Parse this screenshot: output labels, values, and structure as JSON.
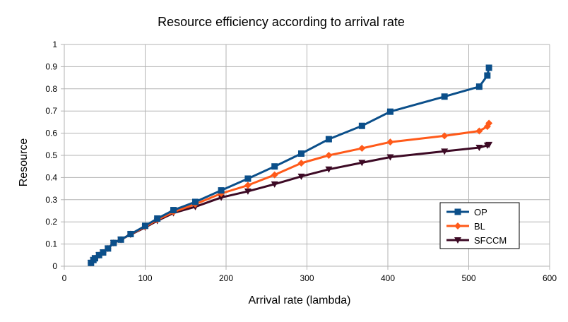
{
  "chart_data": {
    "type": "line",
    "title": "Resource efficiency according to arrival rate",
    "xlabel": "Arrival rate (lambda)",
    "ylabel": "Resource",
    "xlim": [
      0,
      600
    ],
    "ylim": [
      0,
      1
    ],
    "x_ticks": [
      "0",
      "100",
      "200",
      "300",
      "400",
      "500",
      "600"
    ],
    "y_ticks": [
      "0",
      "0.1",
      "0.2",
      "0.3",
      "0.4",
      "0.5",
      "0.6",
      "0.7",
      "0.8",
      "0.9",
      "1"
    ],
    "grid": true,
    "legend_position": "bottom-right",
    "series": [
      {
        "name": "OP",
        "color": "#0b4f8a",
        "marker": "square",
        "x": [
          33,
          36,
          38,
          43,
          48,
          54,
          61,
          70,
          82,
          100,
          115,
          135,
          162,
          194,
          227,
          260,
          293,
          327,
          368,
          403,
          470,
          513,
          523,
          525
        ],
        "y": [
          0.015,
          0.028,
          0.036,
          0.05,
          0.062,
          0.08,
          0.105,
          0.12,
          0.145,
          0.182,
          0.215,
          0.253,
          0.29,
          0.342,
          0.395,
          0.45,
          0.508,
          0.573,
          0.633,
          0.697,
          0.765,
          0.81,
          0.86,
          0.895
        ]
      },
      {
        "name": "BL",
        "color": "#ff5a1a",
        "marker": "diamond",
        "x": [
          33,
          36,
          38,
          43,
          48,
          54,
          61,
          70,
          82,
          100,
          115,
          135,
          162,
          194,
          227,
          260,
          293,
          327,
          368,
          403,
          470,
          513,
          523,
          525
        ],
        "y": [
          0.015,
          0.028,
          0.036,
          0.05,
          0.062,
          0.08,
          0.105,
          0.12,
          0.145,
          0.178,
          0.21,
          0.245,
          0.28,
          0.328,
          0.365,
          0.412,
          0.465,
          0.5,
          0.532,
          0.56,
          0.588,
          0.61,
          0.63,
          0.645
        ]
      },
      {
        "name": "SFCCM",
        "color": "#3d0a25",
        "marker": "triangle-down",
        "x": [
          33,
          36,
          38,
          43,
          48,
          54,
          61,
          70,
          82,
          100,
          115,
          135,
          162,
          194,
          227,
          260,
          293,
          327,
          368,
          403,
          470,
          513,
          523,
          525
        ],
        "y": [
          0.015,
          0.028,
          0.036,
          0.05,
          0.062,
          0.08,
          0.105,
          0.12,
          0.143,
          0.175,
          0.205,
          0.24,
          0.268,
          0.31,
          0.338,
          0.37,
          0.405,
          0.437,
          0.467,
          0.492,
          0.518,
          0.535,
          0.545,
          0.548
        ]
      }
    ]
  }
}
